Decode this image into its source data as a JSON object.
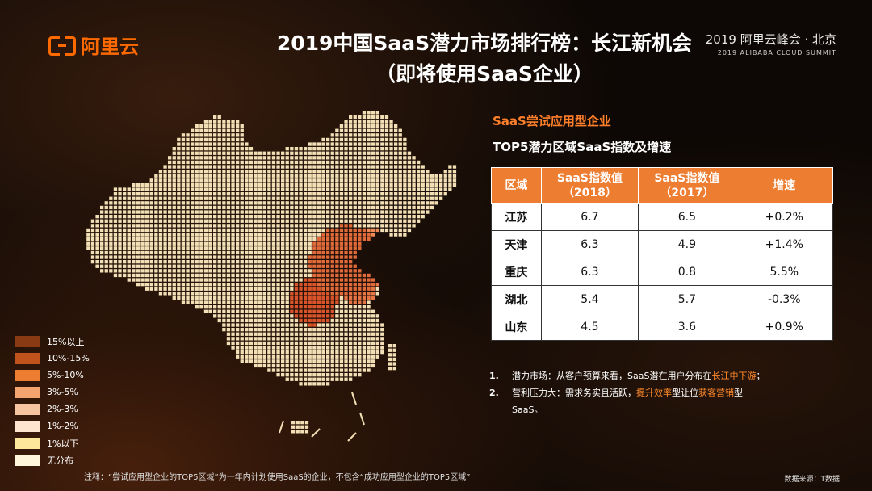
{
  "logo": {
    "text": "阿里云"
  },
  "title": {
    "line1": "2019中国SaaS潜力市场排行榜：长江新机会",
    "line2": "（即将使用SaaS企业）"
  },
  "summit": {
    "line1": "2019 阿里云峰会 · 北京",
    "line2": "2019 ALIBABA CLOUD SUMMIT"
  },
  "section_title": "SaaS尝试应用型企业",
  "sub_title": "TOP5潜力区域SaaS指数及增速",
  "legend": [
    {
      "label": "15%以上",
      "color": "#8a3a12"
    },
    {
      "label": "10%-15%",
      "color": "#c0521c"
    },
    {
      "label": "5%-10%",
      "color": "#ed7d31"
    },
    {
      "label": "3%-5%",
      "color": "#f4a46e"
    },
    {
      "label": "2%-3%",
      "color": "#f6c4a0"
    },
    {
      "label": "1%-2%",
      "color": "#fde5d0"
    },
    {
      "label": "1%以下",
      "color": "#fde79a"
    },
    {
      "label": "无分布",
      "color": "#fff6dc"
    }
  ],
  "chart_data": {
    "type": "table",
    "columns": [
      "区域",
      "SaaS指数值（2018）",
      "SaaS指数值（2017）",
      "增速"
    ],
    "header_lines": [
      [
        "区域"
      ],
      [
        "SaaS指数值",
        "（2018）"
      ],
      [
        "SaaS指数值",
        "（2017）"
      ],
      [
        "增速"
      ]
    ],
    "rows": [
      [
        "江苏",
        "6.7",
        "6.5",
        "+0.2%"
      ],
      [
        "天津",
        "6.3",
        "4.9",
        "+1.4%"
      ],
      [
        "重庆",
        "6.3",
        "0.8",
        "5.5%"
      ],
      [
        "湖北",
        "5.4",
        "5.7",
        "-0.3%"
      ],
      [
        "山东",
        "4.5",
        "3.6",
        "+0.9%"
      ]
    ]
  },
  "notes": {
    "n1": {
      "num": "1.",
      "text": "潜力市场：从客户预算来看，SaaS潜在用户分布在",
      "highlight": "长江中下游",
      "end": "；"
    },
    "n2": {
      "num": "2.",
      "text_a": "营利压力大：需求务实且活跃，",
      "hl_a": "提升效率",
      "text_b": "型让位",
      "hl_b": "获客营销",
      "text_c": "型",
      "cont": "SaaS。"
    }
  },
  "footnote": "注释：“尝试应用型企业的TOP5区域”为一年内计划使用SaaS的企业，不包含“成功应用型企业的TOP5区域”",
  "source": "数据来源：T数据"
}
